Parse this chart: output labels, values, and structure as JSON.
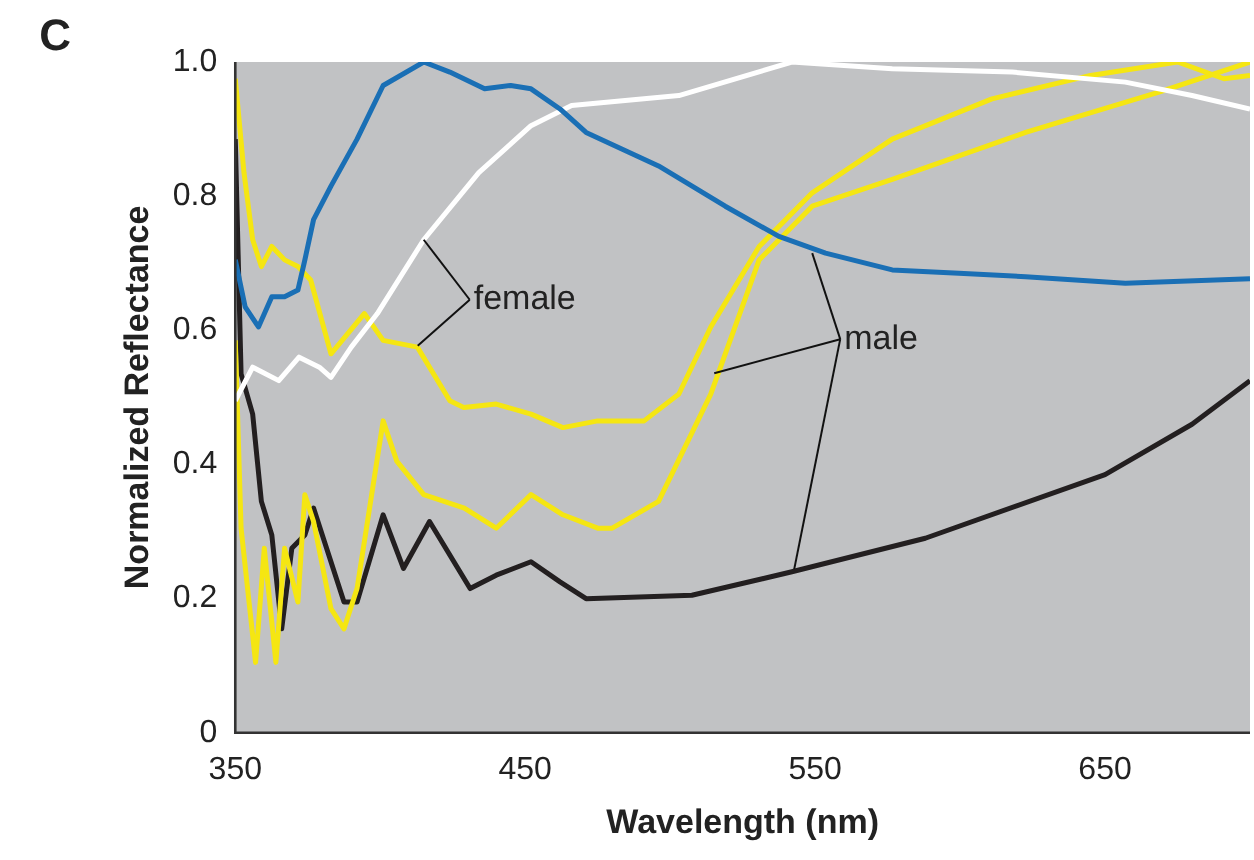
{
  "chart_data": {
    "type": "line",
    "xlabel": "Wavelength (nm)",
    "ylabel": "Normalized Reflectance",
    "xlim": [
      350,
      700
    ],
    "ylim": [
      0,
      1
    ],
    "xticks": [
      350,
      450,
      550,
      650
    ],
    "yticks": [
      0,
      {
        "value": 0.2,
        "label": "0.2"
      },
      {
        "value": 0.4,
        "label": "0.4"
      },
      {
        "value": 0.6,
        "label": "0.6"
      },
      {
        "value": 0.8,
        "label": "0.8"
      },
      {
        "value": 1,
        "label": "1.0"
      }
    ],
    "grid": false,
    "legend": false,
    "marker": "none",
    "line_style": "solid",
    "annotations": [
      "C",
      {
        "text": "female",
        "x": 415,
        "y": 0.735
      },
      {
        "text": "male",
        "x": 549,
        "y": 0.715
      }
    ],
    "series": [
      {
        "color": "#1a6fb5",
        "x": [
          350,
          353.4,
          358,
          362.6,
          367,
          371.6,
          374,
          377,
          383,
          392,
          401,
          415,
          424,
          436,
          445,
          452,
          462,
          471,
          496,
          519,
          537.5,
          553.6,
          576.6,
          599.6,
          622.6,
          657,
          700
        ],
        "values": [
          0.705,
          0.635,
          0.605,
          0.65,
          0.65,
          0.66,
          0.705,
          0.765,
          0.815,
          0.885,
          0.965,
          1.0,
          0.985,
          0.96,
          0.965,
          0.96,
          0.93,
          0.895,
          0.845,
          0.785,
          0.74,
          0.715,
          0.69,
          0.685,
          0.68,
          0.67,
          0.677
        ]
      },
      {
        "color": "#ffffff",
        "x": [
          350,
          356,
          365,
          372,
          379,
          383,
          390,
          399,
          415,
          434,
          452,
          466,
          503,
          542,
          576.6,
          618,
          657,
          680,
          700
        ],
        "values": [
          0.495,
          0.545,
          0.525,
          0.56,
          0.545,
          0.53,
          0.575,
          0.625,
          0.735,
          0.835,
          0.905,
          0.935,
          0.95,
          1.0,
          0.99,
          0.985,
          0.97,
          0.95,
          0.93
        ]
      },
      {
        "color": "#f5e612",
        "x": [
          350,
          353,
          356,
          359,
          362.6,
          367,
          371.6,
          376,
          383,
          394.5,
          401,
          412.8,
          424,
          428.8,
          440,
          452,
          463,
          475,
          491,
          503,
          514,
          530.7,
          549,
          576.6,
          611,
          645,
          675,
          691,
          700
        ],
        "values": [
          0.975,
          0.835,
          0.735,
          0.695,
          0.725,
          0.705,
          0.695,
          0.675,
          0.565,
          0.625,
          0.585,
          0.575,
          0.495,
          0.485,
          0.49,
          0.475,
          0.455,
          0.465,
          0.465,
          0.505,
          0.605,
          0.725,
          0.805,
          0.885,
          0.945,
          0.98,
          1.0,
          0.975,
          0.98
        ]
      },
      {
        "color": "#f5e612",
        "x": [
          350,
          352,
          357,
          360,
          364,
          367,
          371.6,
          374,
          377,
          383,
          387.5,
          392,
          401,
          405.7,
          415,
          429,
          440,
          452,
          463,
          475,
          480,
          496,
          514,
          530.7,
          549,
          576.6,
          622.6,
          668.6,
          700
        ],
        "values": [
          0.585,
          0.305,
          0.105,
          0.275,
          0.105,
          0.275,
          0.195,
          0.355,
          0.315,
          0.185,
          0.155,
          0.215,
          0.465,
          0.405,
          0.355,
          0.335,
          0.305,
          0.355,
          0.325,
          0.305,
          0.305,
          0.345,
          0.505,
          0.705,
          0.785,
          0.825,
          0.895,
          0.955,
          1.0
        ]
      },
      {
        "color": "#231f20",
        "x": [
          350,
          352,
          356,
          359,
          362.6,
          366,
          369.5,
          374,
          377,
          383,
          387.5,
          392,
          401,
          408,
          417,
          431,
          440,
          452,
          462,
          471,
          507.5,
          542,
          588,
          650,
          680,
          700
        ],
        "values": [
          0.885,
          0.535,
          0.475,
          0.345,
          0.295,
          0.155,
          0.275,
          0.295,
          0.335,
          0.255,
          0.195,
          0.195,
          0.325,
          0.245,
          0.315,
          0.215,
          0.235,
          0.255,
          0.225,
          0.2,
          0.205,
          0.24,
          0.29,
          0.385,
          0.46,
          0.525
        ]
      }
    ]
  }
}
